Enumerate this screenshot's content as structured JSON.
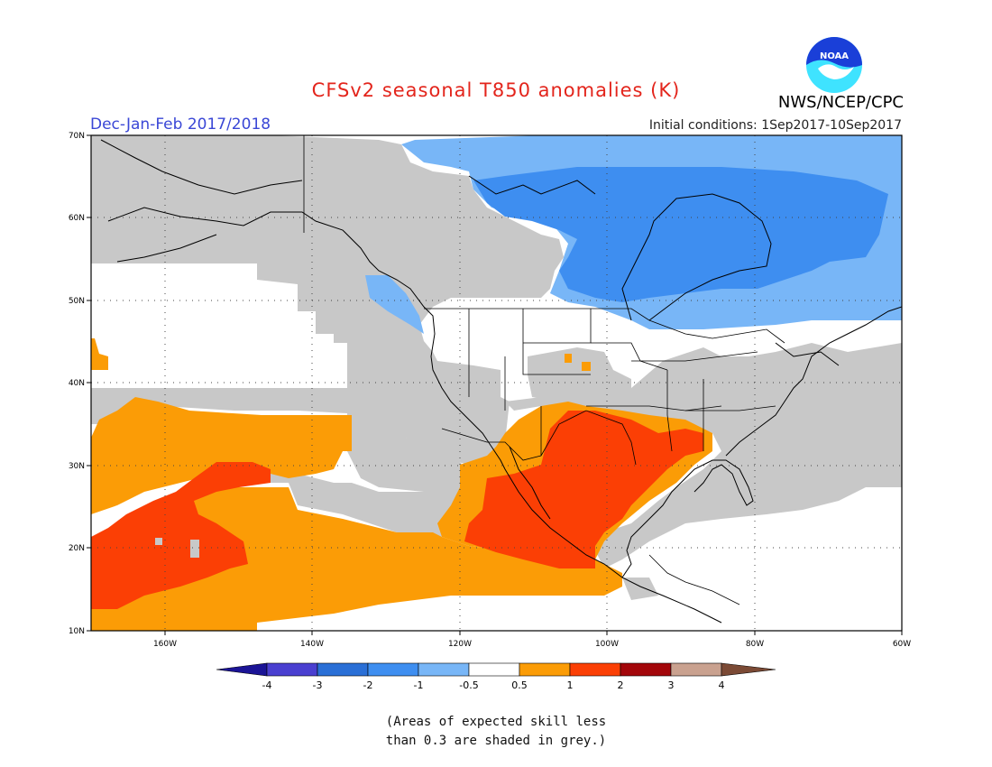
{
  "title": "CFSv2 seasonal T850 anomalies (K)",
  "season": "Dec-Jan-Feb 2017/2018",
  "initial_conditions": "Initial conditions: 1Sep2017-10Sep2017",
  "agency": "NWS/NCEP/CPC",
  "logo_text": "NOAA",
  "map": {
    "region": "North America and Northeast Pacific",
    "lat_range": [
      10,
      70
    ],
    "lon_range": [
      -170,
      -60
    ],
    "lat_labels": [
      "10N",
      "20N",
      "30N",
      "40N",
      "50N",
      "60N",
      "70N"
    ],
    "lon_labels": [
      "160W",
      "140W",
      "120W",
      "100W",
      "80W",
      "60W"
    ],
    "grey_shading_meaning": "skill less than 0.3"
  },
  "colorbar": {
    "labels": [
      "-4",
      "-3",
      "-2",
      "-1",
      "-0.5",
      "0.5",
      "1",
      "2",
      "3",
      "4"
    ],
    "colors": {
      "lt_neg4": "#1b1496",
      "neg4_neg3": "#4a3fd0",
      "neg3_neg2": "#2a6fd6",
      "neg2_neg1": "#3e8ef0",
      "neg1_neg05": "#78b6f7",
      "neg05_05": "#ffffff",
      "p05_1": "#fb9c06",
      "p1_2": "#fb3f05",
      "p2_3": "#a3060a",
      "p3_4": "#c9a18f",
      "gt4": "#7b4a35"
    }
  },
  "note": [
    "(Areas of expected skill less",
    "than 0.3 are shaded in grey.)"
  ]
}
